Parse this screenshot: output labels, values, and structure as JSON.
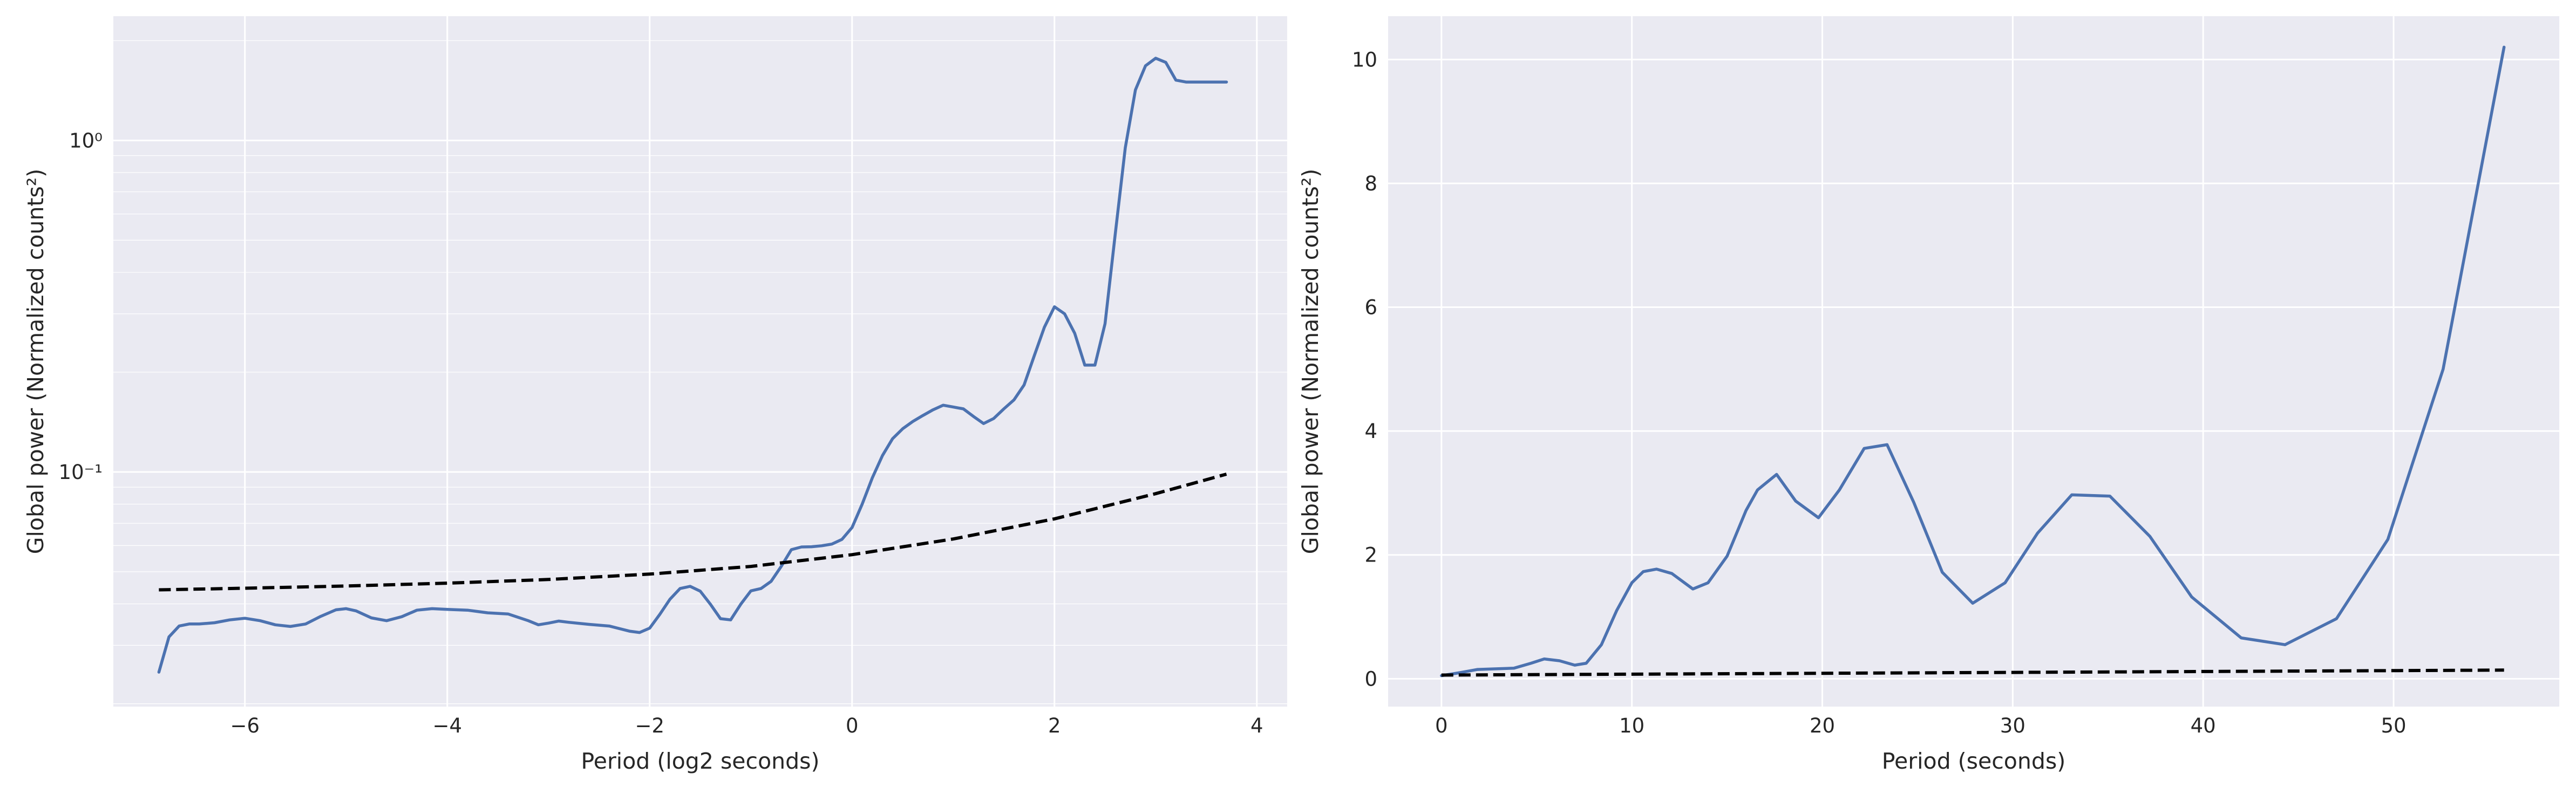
{
  "colors": {
    "background": "#eaeaf2",
    "grid": "#ffffff",
    "series": "#4c72b0",
    "significance": "#000000"
  },
  "chart_data": [
    {
      "type": "line",
      "ylog": true,
      "grid": true,
      "xlabel": "Period (log2 seconds)",
      "ylabel": "Global power (Normalized counts²)",
      "xlim": [
        -7.3,
        4.3
      ],
      "ylim": [
        0.0196,
        2.37
      ],
      "xticks": [
        -6,
        -4,
        -2,
        0,
        2,
        4
      ],
      "xtick_labels": [
        "−6",
        "−4",
        "−2",
        "0",
        "2",
        "4"
      ],
      "yticks": [
        0.1,
        1
      ],
      "ytick_labels": [
        "10⁻¹",
        "10⁰"
      ],
      "series": [
        {
          "style": "solid",
          "x": [
            -6.85,
            -6.75,
            -6.65,
            -6.55,
            -6.45,
            -6.3,
            -6.15,
            -6.0,
            -5.85,
            -5.7,
            -5.55,
            -5.4,
            -5.25,
            -5.1,
            -5.0,
            -4.9,
            -4.75,
            -4.6,
            -4.45,
            -4.3,
            -4.15,
            -4.0,
            -3.8,
            -3.6,
            -3.4,
            -3.2,
            -3.1,
            -3.0,
            -2.9,
            -2.8,
            -2.6,
            -2.4,
            -2.2,
            -2.1,
            -2.0,
            -1.9,
            -1.8,
            -1.7,
            -1.6,
            -1.5,
            -1.4,
            -1.3,
            -1.2,
            -1.1,
            -1.0,
            -0.9,
            -0.8,
            -0.7,
            -0.6,
            -0.5,
            -0.4,
            -0.3,
            -0.2,
            -0.1,
            0.0,
            0.1,
            0.2,
            0.3,
            0.4,
            0.5,
            0.6,
            0.7,
            0.8,
            0.9,
            1.0,
            1.1,
            1.2,
            1.3,
            1.4,
            1.5,
            1.6,
            1.7,
            1.8,
            1.9,
            2.0,
            2.1,
            2.2,
            2.3,
            2.4,
            2.5,
            2.6,
            2.7,
            2.8,
            2.9,
            3.0,
            3.1,
            3.2,
            3.3,
            3.4,
            3.5,
            3.6,
            3.7
          ],
          "y": [
            0.0249,
            0.0318,
            0.0343,
            0.0348,
            0.0348,
            0.0351,
            0.0358,
            0.0362,
            0.0356,
            0.0346,
            0.0342,
            0.0348,
            0.0367,
            0.0384,
            0.0387,
            0.0381,
            0.0363,
            0.0356,
            0.0366,
            0.0383,
            0.0387,
            0.0385,
            0.0383,
            0.0376,
            0.0373,
            0.0356,
            0.0346,
            0.035,
            0.0355,
            0.0352,
            0.0347,
            0.0343,
            0.0331,
            0.0328,
            0.0338,
            0.0372,
            0.0413,
            0.0445,
            0.0452,
            0.0437,
            0.0399,
            0.0361,
            0.0358,
            0.0399,
            0.0438,
            0.0445,
            0.0468,
            0.0519,
            0.0583,
            0.0594,
            0.0595,
            0.0599,
            0.0606,
            0.0626,
            0.068,
            0.08,
            0.096,
            0.112,
            0.126,
            0.135,
            0.142,
            0.148,
            0.154,
            0.159,
            0.157,
            0.155,
            0.147,
            0.14,
            0.145,
            0.155,
            0.165,
            0.183,
            0.224,
            0.273,
            0.315,
            0.3,
            0.262,
            0.21,
            0.21,
            0.28,
            0.52,
            0.95,
            1.42,
            1.68,
            1.77,
            1.72,
            1.52,
            1.5,
            1.5,
            1.5,
            1.5,
            1.5
          ]
        },
        {
          "style": "dashed",
          "x": [
            -6.85,
            -6.0,
            -5.0,
            -4.0,
            -3.0,
            -2.0,
            -1.0,
            0.0,
            1.0,
            2.0,
            3.0,
            3.7
          ],
          "y": [
            0.0441,
            0.0446,
            0.0453,
            0.0462,
            0.0474,
            0.0492,
            0.0519,
            0.0563,
            0.0628,
            0.0722,
            0.086,
            0.0985
          ]
        }
      ]
    },
    {
      "type": "line",
      "grid": true,
      "xlabel": "Period (seconds)",
      "ylabel": "Global power (Normalized counts²)",
      "xlim": [
        -2.8,
        58.7
      ],
      "ylim": [
        -0.45,
        10.7
      ],
      "xticks": [
        0,
        10,
        20,
        30,
        40,
        50
      ],
      "xtick_labels": [
        "0",
        "10",
        "20",
        "30",
        "40",
        "50"
      ],
      "yticks": [
        0,
        2,
        4,
        6,
        8,
        10
      ],
      "ytick_labels": [
        "0",
        "2",
        "4",
        "6",
        "8",
        "10"
      ],
      "series": [
        {
          "style": "solid",
          "x": [
            0.0,
            1.0,
            1.9,
            2.8,
            3.8,
            4.7,
            5.4,
            6.2,
            7.0,
            7.6,
            8.4,
            9.2,
            10.0,
            10.6,
            11.3,
            12.1,
            13.2,
            14.0,
            15.0,
            16.0,
            16.6,
            17.6,
            18.6,
            19.8,
            20.9,
            22.2,
            23.4,
            24.8,
            26.3,
            27.9,
            29.6,
            31.3,
            33.1,
            35.1,
            37.2,
            39.4,
            42.0,
            44.3,
            47.0,
            49.7,
            52.6,
            55.8
          ],
          "y": [
            0.05,
            0.1,
            0.15,
            0.16,
            0.17,
            0.25,
            0.32,
            0.29,
            0.22,
            0.25,
            0.55,
            1.1,
            1.55,
            1.73,
            1.77,
            1.7,
            1.45,
            1.55,
            1.98,
            2.72,
            3.05,
            3.3,
            2.87,
            2.6,
            3.05,
            3.72,
            3.78,
            2.85,
            1.72,
            1.22,
            1.55,
            2.35,
            2.97,
            2.95,
            2.3,
            1.32,
            0.66,
            0.55,
            0.97,
            2.25,
            5.0,
            10.2
          ]
        },
        {
          "style": "dashed",
          "x": [
            0.0,
            55.8
          ],
          "y": [
            0.06,
            0.14
          ]
        }
      ]
    }
  ]
}
